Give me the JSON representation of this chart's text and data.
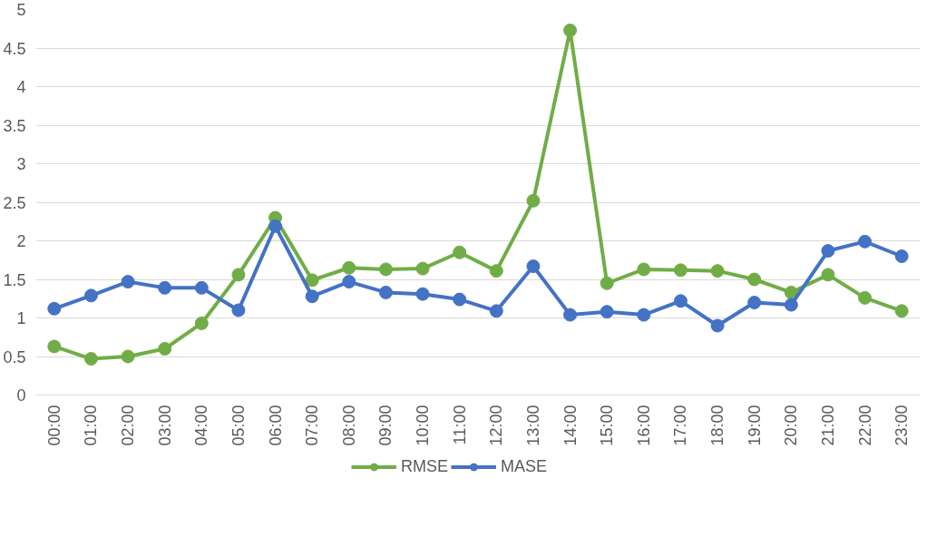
{
  "chart_data": {
    "type": "line",
    "categories": [
      "00:00",
      "01:00",
      "02:00",
      "03:00",
      "04:00",
      "05:00",
      "06:00",
      "07:00",
      "08:00",
      "09:00",
      "10:00",
      "11:00",
      "12:00",
      "13:00",
      "14:00",
      "15:00",
      "16:00",
      "17:00",
      "18:00",
      "19:00",
      "20:00",
      "21:00",
      "22:00",
      "23:00"
    ],
    "series": [
      {
        "name": "RMSE",
        "color": "#70ad47",
        "values": [
          0.63,
          0.47,
          0.5,
          0.6,
          0.93,
          1.56,
          2.3,
          1.49,
          1.65,
          1.63,
          1.64,
          1.85,
          1.61,
          2.52,
          4.73,
          1.45,
          1.63,
          1.62,
          1.61,
          1.5,
          1.33,
          1.56,
          1.26,
          1.09
        ]
      },
      {
        "name": "MASE",
        "color": "#4472c4",
        "values": [
          1.12,
          1.29,
          1.47,
          1.39,
          1.39,
          1.1,
          2.19,
          1.28,
          1.47,
          1.33,
          1.31,
          1.24,
          1.09,
          1.67,
          1.04,
          1.08,
          1.04,
          1.22,
          0.9,
          1.2,
          1.17,
          1.87,
          1.99,
          1.8
        ]
      }
    ],
    "ylim": [
      0,
      5
    ],
    "yticks": [
      0,
      0.5,
      1,
      1.5,
      2,
      2.5,
      3,
      3.5,
      4,
      4.5,
      5
    ],
    "grid": "y",
    "legend": "bottom",
    "marker": "circle",
    "line_style": "solid"
  }
}
